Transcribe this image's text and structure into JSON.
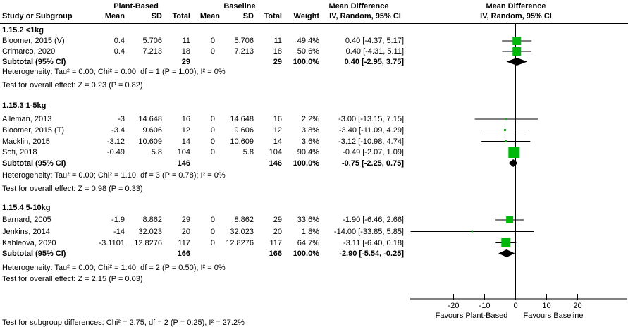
{
  "colors": {
    "marker_green": "#00b80b",
    "summary_black": "#000000",
    "line_black": "#000000",
    "background": "#ffffff"
  },
  "chart_data": {
    "type": "forest",
    "effect_measure": "Mean Difference",
    "model": "IV, Random, 95% CI",
    "columns": {
      "study": "Study or Subgroup",
      "group_pb": "Plant-Based",
      "group_bl": "Baseline",
      "mean": "Mean",
      "sd": "SD",
      "total": "Total",
      "weight": "Weight",
      "effect_title": "Mean Difference",
      "effect_method": "IV, Random, 95% CI",
      "plot_title": "Mean Difference",
      "plot_method": "IV, Random, 95% CI"
    },
    "axis": {
      "tick_values": [
        -20,
        -10,
        0,
        10,
        20
      ],
      "ticks": [
        "-20",
        "-10",
        "0",
        "10",
        "20"
      ],
      "xmin": -34,
      "xmax": 36,
      "favours_left": "Favours Plant-Based",
      "favours_right": "Favours Baseline"
    },
    "footer": "Test for subgroup differences: Chi² = 2.75, df = 2 (P = 0.25), I² = 27.2%",
    "subgroups": [
      {
        "label": "1.15.2 <1kg",
        "studies": [
          {
            "name": "Bloomer, 2015 (V)",
            "mean_pb": "0.4",
            "sd_pb": "5.706",
            "total_pb": "11",
            "mean_bl": "0",
            "sd_bl": "5.706",
            "total_bl": "11",
            "weight": "49.4%",
            "weight_value": 49.4,
            "effect": "0.40 [-4.37, 5.17]",
            "md": 0.4,
            "ci_low": -4.37,
            "ci_high": 5.17
          },
          {
            "name": "Crimarco, 2020",
            "mean_pb": "0.4",
            "sd_pb": "7.213",
            "total_pb": "18",
            "mean_bl": "0",
            "sd_bl": "7.213",
            "total_bl": "18",
            "weight": "50.6%",
            "weight_value": 50.6,
            "effect": "0.40 [-4.31, 5.11]",
            "md": 0.4,
            "ci_low": -4.31,
            "ci_high": 5.11
          }
        ],
        "subtotal": {
          "label": "Subtotal (95% CI)",
          "total_pb": "29",
          "total_bl": "29",
          "weight": "100.0%",
          "effect": "0.40 [-2.95, 3.75]",
          "md": 0.4,
          "ci_low": -2.95,
          "ci_high": 3.75
        },
        "heterogeneity": "Heterogeneity: Tau² = 0.00; Chi² = 0.00, df = 1 (P = 1.00); I² = 0%",
        "overall_test": "Test for overall effect: Z = 0.23 (P = 0.82)"
      },
      {
        "label": "1.15.3 1-5kg",
        "studies": [
          {
            "name": "Alleman, 2013",
            "mean_pb": "-3",
            "sd_pb": "14.648",
            "total_pb": "16",
            "mean_bl": "0",
            "sd_bl": "14.648",
            "total_bl": "16",
            "weight": "2.2%",
            "weight_value": 2.2,
            "effect": "-3.00 [-13.15, 7.15]",
            "md": -3.0,
            "ci_low": -13.15,
            "ci_high": 7.15
          },
          {
            "name": "Bloomer, 2015 (T)",
            "mean_pb": "-3.4",
            "sd_pb": "9.606",
            "total_pb": "12",
            "mean_bl": "0",
            "sd_bl": "9.606",
            "total_bl": "12",
            "weight": "3.8%",
            "weight_value": 3.8,
            "effect": "-3.40 [-11.09, 4.29]",
            "md": -3.4,
            "ci_low": -11.09,
            "ci_high": 4.29
          },
          {
            "name": "Macklin, 2015",
            "mean_pb": "-3.12",
            "sd_pb": "10.609",
            "total_pb": "14",
            "mean_bl": "0",
            "sd_bl": "10.609",
            "total_bl": "14",
            "weight": "3.6%",
            "weight_value": 3.6,
            "effect": "-3.12 [-10.98, 4.74]",
            "md": -3.12,
            "ci_low": -10.98,
            "ci_high": 4.74
          },
          {
            "name": "Sofi, 2018",
            "mean_pb": "-0.49",
            "sd_pb": "5.8",
            "total_pb": "104",
            "mean_bl": "0",
            "sd_bl": "5.8",
            "total_bl": "104",
            "weight": "90.4%",
            "weight_value": 90.4,
            "effect": "-0.49 [-2.07, 1.09]",
            "md": -0.49,
            "ci_low": -2.07,
            "ci_high": 1.09
          }
        ],
        "subtotal": {
          "label": "Subtotal (95% CI)",
          "total_pb": "146",
          "total_bl": "146",
          "weight": "100.0%",
          "effect": "-0.75 [-2.25, 0.75]",
          "md": -0.75,
          "ci_low": -2.25,
          "ci_high": 0.75
        },
        "heterogeneity": "Heterogeneity: Tau² = 0.00; Chi² = 1.10, df = 3 (P = 0.78); I² = 0%",
        "overall_test": "Test for overall effect: Z = 0.98 (P = 0.33)"
      },
      {
        "label": "1.15.4 5-10kg",
        "studies": [
          {
            "name": "Barnard, 2005",
            "mean_pb": "-1.9",
            "sd_pb": "8.862",
            "total_pb": "29",
            "mean_bl": "0",
            "sd_bl": "8.862",
            "total_bl": "29",
            "weight": "33.6%",
            "weight_value": 33.6,
            "effect": "-1.90 [-6.46, 2.66]",
            "md": -1.9,
            "ci_low": -6.46,
            "ci_high": 2.66
          },
          {
            "name": "Jenkins, 2014",
            "mean_pb": "-14",
            "sd_pb": "32.023",
            "total_pb": "20",
            "mean_bl": "0",
            "sd_bl": "32.023",
            "total_bl": "20",
            "weight": "1.8%",
            "weight_value": 1.8,
            "effect": "-14.00 [-33.85, 5.85]",
            "md": -14.0,
            "ci_low": -33.85,
            "ci_high": 5.85
          },
          {
            "name": "Kahleova, 2020",
            "mean_pb": "-3.1101",
            "sd_pb": "12.8276",
            "total_pb": "117",
            "mean_bl": "0",
            "sd_bl": "12.8276",
            "total_bl": "117",
            "weight": "64.7%",
            "weight_value": 64.7,
            "effect": "-3.11 [-6.40, 0.18]",
            "md": -3.11,
            "ci_low": -6.4,
            "ci_high": 0.18
          }
        ],
        "subtotal": {
          "label": "Subtotal (95% CI)",
          "total_pb": "166",
          "total_bl": "166",
          "weight": "100.0%",
          "effect": "-2.90 [-5.54, -0.25]",
          "md": -2.9,
          "ci_low": -5.54,
          "ci_high": -0.25
        },
        "heterogeneity": "Heterogeneity: Tau² = 0.00; Chi² = 1.40, df = 2 (P = 0.50); I² = 0%",
        "overall_test": "Test for overall effect: Z = 2.15 (P = 0.03)"
      }
    ]
  }
}
